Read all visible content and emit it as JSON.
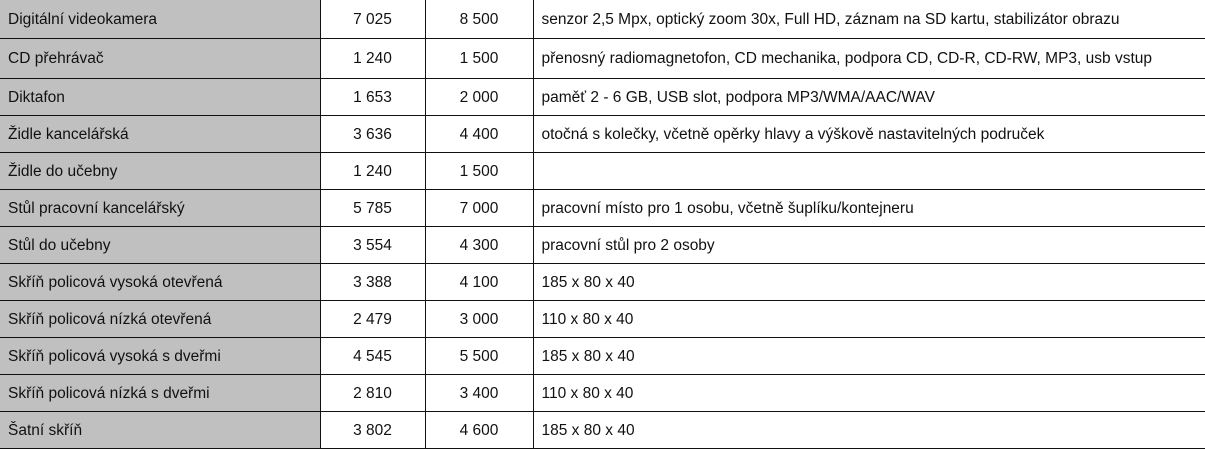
{
  "rows": [
    {
      "name": "Digitální videokamera",
      "price_without_vat": "7 025",
      "price_with_vat": "8 500",
      "description": "senzor 2,5 Mpx, optický zoom 30x, Full HD, záznam na SD kartu, stabilizátor obrazu"
    },
    {
      "name": "CD přehrávač",
      "price_without_vat": "1 240",
      "price_with_vat": "1 500",
      "description": "přenosný radiomagnetofon, CD mechanika, podpora CD, CD-R, CD-RW, MP3, usb vstup"
    },
    {
      "name": "Diktafon",
      "price_without_vat": "1 653",
      "price_with_vat": "2 000",
      "description": "paměť 2 - 6 GB, USB slot, podpora MP3/WMA/AAC/WAV"
    },
    {
      "name": "Židle kancelářská",
      "price_without_vat": "3 636",
      "price_with_vat": "4 400",
      "description": "otočná s kolečky, včetně opěrky hlavy a výškově nastavitelných područek"
    },
    {
      "name": "Židle do učebny",
      "price_without_vat": "1 240",
      "price_with_vat": "1 500",
      "description": ""
    },
    {
      "name": "Stůl pracovní kancelářský",
      "price_without_vat": "5 785",
      "price_with_vat": "7 000",
      "description": "pracovní místo pro 1 osobu, včetně šuplíku/kontejneru"
    },
    {
      "name": "Stůl do učebny",
      "price_without_vat": "3 554",
      "price_with_vat": "4 300",
      "description": "pracovní stůl pro 2 osoby"
    },
    {
      "name": "Skříň policová vysoká otevřená",
      "price_without_vat": "3 388",
      "price_with_vat": "4 100",
      "description": "185 x 80 x 40"
    },
    {
      "name": "Skříň policová nízká otevřená",
      "price_without_vat": "2 479",
      "price_with_vat": "3 000",
      "description": "110 x 80 x 40"
    },
    {
      "name": "Skříň policová vysoká s dveřmi",
      "price_without_vat": "4 545",
      "price_with_vat": "5 500",
      "description": "185 x 80 x 40"
    },
    {
      "name": "Skříň policová nízká s dveřmi",
      "price_without_vat": "2 810",
      "price_with_vat": "3 400",
      "description": "110 x 80 x 40"
    },
    {
      "name": "Šatní skříň",
      "price_without_vat": "3 802",
      "price_with_vat": "4 600",
      "description": "185 x 80 x 40"
    }
  ]
}
